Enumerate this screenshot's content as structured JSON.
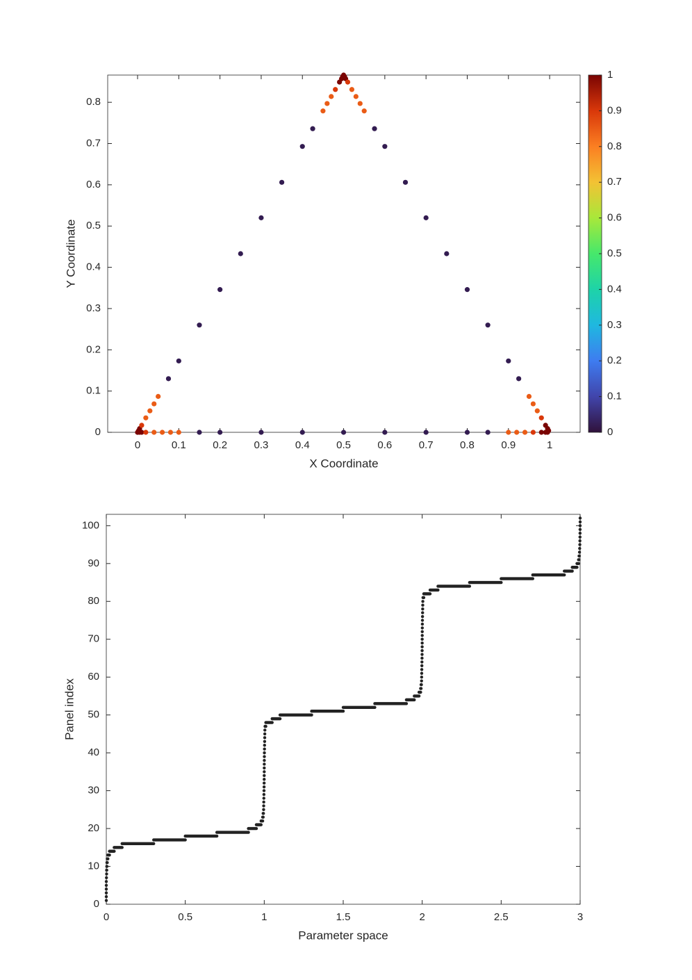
{
  "chart_data": [
    {
      "type": "scatter",
      "xlabel": "X Coordinate",
      "ylabel": "Y Coordinate",
      "xlim": [
        -0.0725,
        1.074
      ],
      "ylim": [
        0,
        0.866
      ],
      "xticks": [
        0,
        0.1,
        0.2,
        0.3,
        0.4,
        0.5,
        0.6,
        0.7,
        0.8,
        0.9,
        1
      ],
      "yticks": [
        0,
        0.1,
        0.2,
        0.3,
        0.4,
        0.5,
        0.6,
        0.7,
        0.8
      ],
      "x": [
        0,
        0.005,
        0.01,
        0.02,
        0.04,
        0.06,
        0.08,
        0.1,
        0.15,
        0.2,
        0.3,
        0.4,
        0.5,
        0.6,
        0.7,
        0.8,
        0.85,
        0.9,
        0.92,
        0.94,
        0.96,
        0.98,
        0.99,
        0.995,
        0,
        0.0025,
        0.005,
        0.01,
        0.02,
        0.03,
        0.04,
        0.05,
        0.075,
        0.1,
        0.15,
        0.2,
        0.25,
        0.3,
        0.35,
        0.4,
        0.425,
        0.45,
        0.46,
        0.47,
        0.48,
        0.49,
        0.495,
        0.4975,
        0.5,
        0.5025,
        0.505,
        0.51,
        0.52,
        0.53,
        0.54,
        0.55,
        0.575,
        0.6,
        0.65,
        0.7,
        0.75,
        0.8,
        0.85,
        0.9,
        0.925,
        0.95,
        0.96,
        0.97,
        0.98,
        0.99,
        0.995,
        0.9975
      ],
      "y": [
        0,
        0,
        0,
        0,
        0,
        0,
        0,
        0,
        0,
        0,
        0,
        0,
        0,
        0,
        0,
        0,
        0,
        0,
        0,
        0,
        0,
        0,
        0,
        0,
        0,
        0.004,
        0.009,
        0.017,
        0.035,
        0.052,
        0.069,
        0.087,
        0.13,
        0.173,
        0.26,
        0.346,
        0.433,
        0.52,
        0.606,
        0.693,
        0.736,
        0.779,
        0.797,
        0.814,
        0.831,
        0.849,
        0.857,
        0.862,
        0.866,
        0.862,
        0.857,
        0.849,
        0.831,
        0.814,
        0.797,
        0.779,
        0.736,
        0.693,
        0.606,
        0.52,
        0.433,
        0.346,
        0.26,
        0.173,
        0.13,
        0.087,
        0.069,
        0.052,
        0.035,
        0.017,
        0.009,
        0.004
      ],
      "c": [
        1,
        1,
        1,
        0.9,
        0.85,
        0.85,
        0.85,
        0.85,
        0.02,
        0.02,
        0.02,
        0.02,
        0.02,
        0.02,
        0.02,
        0.02,
        0.02,
        0.85,
        0.85,
        0.85,
        0.9,
        1,
        1,
        1,
        1,
        1,
        1,
        0.9,
        0.85,
        0.85,
        0.85,
        0.85,
        0.02,
        0.02,
        0.02,
        0.02,
        0.02,
        0.02,
        0.02,
        0.02,
        0.02,
        0.85,
        0.85,
        0.85,
        0.9,
        1,
        1,
        1,
        1,
        1,
        1,
        0.9,
        0.85,
        0.85,
        0.85,
        0.85,
        0.02,
        0.02,
        0.02,
        0.02,
        0.02,
        0.02,
        0.02,
        0.02,
        0.02,
        0.85,
        0.85,
        0.85,
        0.9,
        1,
        1,
        1
      ],
      "colorbar": {
        "lim": [
          0,
          1
        ],
        "ticks": [
          0,
          0.1,
          0.2,
          0.3,
          0.4,
          0.5,
          0.6,
          0.7,
          0.8,
          0.9,
          1
        ],
        "colors": [
          "#30123b",
          "#4145ab",
          "#3e7cf0",
          "#1fb8e0",
          "#1ed3a8",
          "#46e86b",
          "#a8e83a",
          "#f3c234",
          "#fb7f22",
          "#d9380a",
          "#7a0403"
        ]
      }
    },
    {
      "type": "range",
      "xlabel": "Parameter space",
      "ylabel": "Panel index",
      "color": "#222222",
      "xlim": [
        0,
        3
      ],
      "ylim": [
        0,
        103
      ],
      "xticks": [
        0,
        0.5,
        1,
        1.5,
        2,
        2.5,
        3
      ],
      "yticks": [
        0,
        10,
        20,
        30,
        40,
        50,
        60,
        70,
        80,
        90,
        100
      ],
      "y": [
        1,
        2,
        3,
        4,
        5,
        6,
        7,
        8,
        9,
        10,
        11,
        12,
        13,
        14,
        15,
        16,
        17,
        18,
        19,
        20,
        21,
        22,
        23,
        24,
        25,
        26,
        27,
        28,
        29,
        30,
        31,
        32,
        33,
        34,
        35,
        36,
        37,
        38,
        39,
        40,
        41,
        42,
        43,
        44,
        45,
        46,
        47,
        48,
        49,
        50,
        51,
        52,
        53,
        54,
        55,
        56,
        57,
        58,
        59,
        60,
        61,
        62,
        63,
        64,
        65,
        66,
        67,
        68,
        69,
        70,
        71,
        72,
        73,
        74,
        75,
        76,
        77,
        78,
        79,
        80,
        81,
        82,
        83,
        84,
        85,
        86,
        87,
        88,
        89,
        90,
        91,
        92,
        93,
        94,
        95,
        96,
        97,
        98,
        99,
        100,
        101,
        102
      ],
      "x_start": [
        0,
        0,
        0,
        0,
        0,
        0,
        0.001,
        0.002,
        0.002,
        0.003,
        0.004,
        0.006,
        0.01,
        0.02,
        0.05,
        0.1,
        0.3,
        0.5,
        0.7,
        0.9,
        0.95,
        0.98,
        0.99,
        0.993,
        0.996,
        0.9965,
        0.997,
        0.9975,
        0.998,
        0.9985,
        0.999,
        0.9993,
        0.9996,
        0.9998,
        1,
        1,
        1.0002,
        1.0004,
        1.0007,
        1.001,
        1.0015,
        1.002,
        1.0025,
        1.003,
        1.0035,
        1.004,
        1.005,
        1.01,
        1.05,
        1.1,
        1.3,
        1.5,
        1.7,
        1.9,
        1.95,
        1.98,
        1.99,
        1.993,
        1.996,
        1.9965,
        1.997,
        1.9975,
        1.998,
        1.9985,
        1.999,
        1.9993,
        1.9996,
        1.9998,
        2,
        2,
        2.0002,
        2.0004,
        2.0007,
        2.001,
        2.0015,
        2.002,
        2.0025,
        2.003,
        2.0035,
        2.004,
        2.005,
        2.01,
        2.05,
        2.1,
        2.3,
        2.5,
        2.7,
        2.9,
        2.95,
        2.98,
        2.99,
        2.993,
        2.996,
        2.997,
        2.998,
        2.9985,
        2.999,
        2.9993,
        2.9996,
        2.9998,
        3,
        3
      ],
      "x_end": [
        0,
        0,
        0,
        0,
        0,
        0,
        0.001,
        0.002,
        0.003,
        0.004,
        0.006,
        0.01,
        0.02,
        0.05,
        0.1,
        0.3,
        0.5,
        0.7,
        0.9,
        0.95,
        0.98,
        0.99,
        0.993,
        0.995,
        0.996,
        0.9965,
        0.997,
        0.9975,
        0.998,
        0.9985,
        0.999,
        0.9993,
        0.9996,
        0.9998,
        1,
        1,
        1.0002,
        1.0004,
        1.0007,
        1.001,
        1.0015,
        1.002,
        1.0025,
        1.003,
        1.0035,
        1.004,
        1.01,
        1.05,
        1.1,
        1.3,
        1.5,
        1.7,
        1.9,
        1.95,
        1.98,
        1.99,
        1.993,
        1.995,
        1.996,
        1.9965,
        1.997,
        1.9975,
        1.998,
        1.9985,
        1.999,
        1.9993,
        1.9996,
        1.9998,
        2,
        2,
        2.0002,
        2.0004,
        2.0007,
        2.001,
        2.0015,
        2.002,
        2.0025,
        2.003,
        2.0035,
        2.004,
        2.01,
        2.05,
        2.1,
        2.3,
        2.5,
        2.7,
        2.9,
        2.95,
        2.98,
        2.99,
        2.993,
        2.995,
        2.996,
        2.997,
        2.998,
        2.9985,
        2.999,
        2.9993,
        2.9996,
        2.9998,
        3,
        3
      ]
    }
  ]
}
